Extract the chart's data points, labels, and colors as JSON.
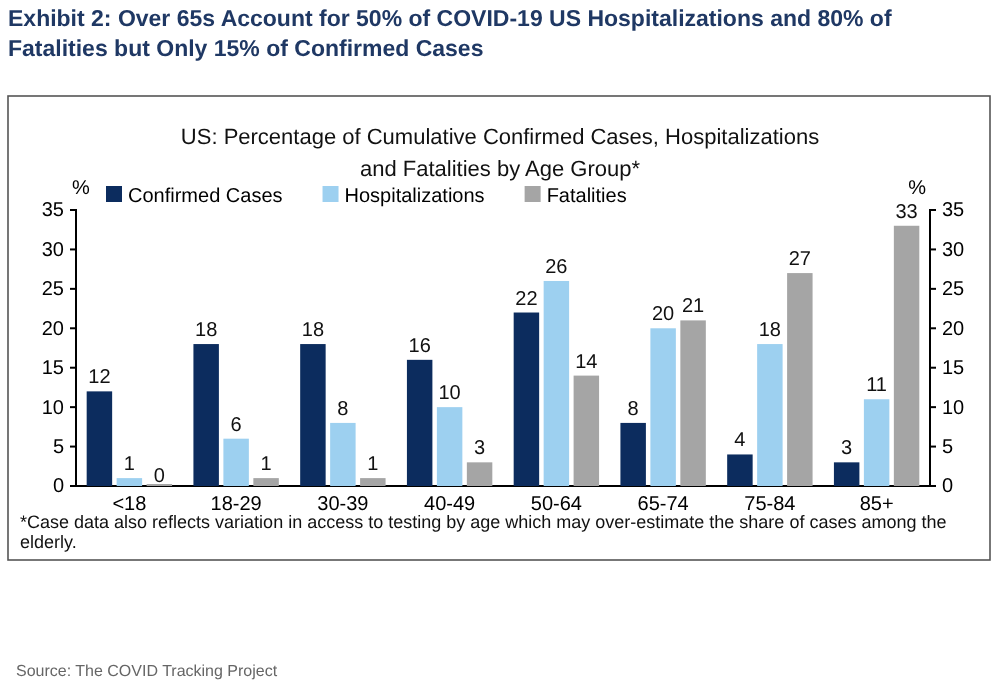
{
  "chart_data": {
    "type": "bar",
    "title": "Exhibit 2: Over 65s Account for 50% of COVID-19 US Hospitalizations and 80% of Fatalities but Only 15% of Confirmed Cases",
    "subtitle": "US: Percentage of Cumulative Confirmed Cases, Hospitalizations and Fatalities by Age Group*",
    "ylabel": "%",
    "y2label": "%",
    "categories": [
      "<18",
      "18-29",
      "30-39",
      "40-49",
      "50-64",
      "65-74",
      "75-84",
      "85+"
    ],
    "series": [
      {
        "name": "Confirmed Cases",
        "color": "#0c2c5e",
        "values": [
          12,
          18,
          18,
          16,
          22,
          8,
          4,
          3
        ]
      },
      {
        "name": "Hospitalizations",
        "color": "#9dd0f0",
        "values": [
          1,
          6,
          8,
          10,
          26,
          20,
          18,
          11
        ]
      },
      {
        "name": "Fatalities",
        "color": "#a5a5a5",
        "values": [
          0,
          1,
          1,
          3,
          14,
          21,
          27,
          33
        ]
      }
    ],
    "ylim": [
      0,
      35
    ],
    "yticks": [
      0,
      5,
      10,
      15,
      20,
      25,
      30,
      35
    ],
    "y2lim": [
      0,
      35
    ],
    "y2ticks": [
      0,
      5,
      10,
      15,
      20,
      25,
      30,
      35
    ],
    "legend": "top left",
    "data_labels": true,
    "grid": false,
    "annotations": [
      "*Case data also reflects variation in access to testing by age which may over-estimate the share of cases among the elderly.",
      "Source: The COVID Tracking Project"
    ]
  }
}
